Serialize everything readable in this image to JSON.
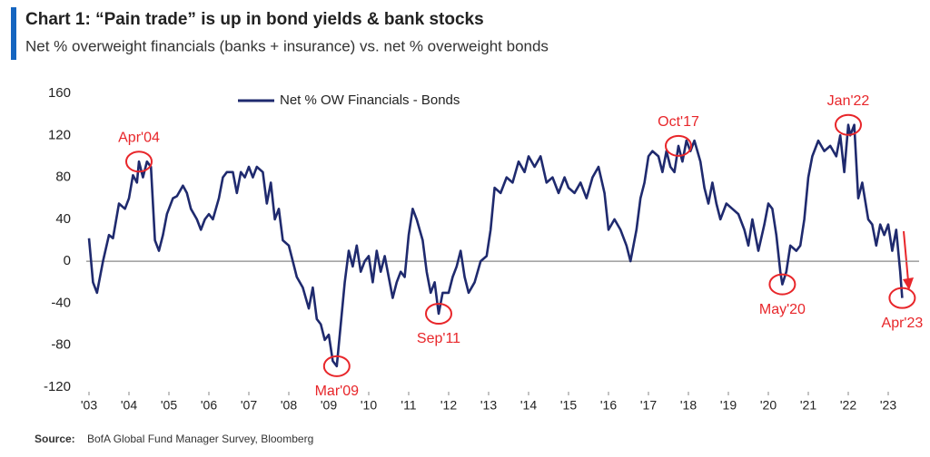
{
  "chart_data": {
    "type": "line",
    "title": "Chart 1: “Pain trade” is up in bond yields & bank stocks",
    "subtitle": "Net % overweight financials (banks + insurance) vs. net % overweight bonds",
    "source_label": "Source:",
    "source": "BofA Global Fund Manager Survey, Bloomberg",
    "xlim": [
      2003,
      2023.8
    ],
    "ylim": [
      -120,
      160
    ],
    "xticks": [
      {
        "value": 2003,
        "label": "'03"
      },
      {
        "value": 2004,
        "label": "'04"
      },
      {
        "value": 2005,
        "label": "'05"
      },
      {
        "value": 2006,
        "label": "'06"
      },
      {
        "value": 2007,
        "label": "'07"
      },
      {
        "value": 2008,
        "label": "'08"
      },
      {
        "value": 2009,
        "label": "'09"
      },
      {
        "value": 2010,
        "label": "'10"
      },
      {
        "value": 2011,
        "label": "'11"
      },
      {
        "value": 2012,
        "label": "'12"
      },
      {
        "value": 2013,
        "label": "'13"
      },
      {
        "value": 2014,
        "label": "'14"
      },
      {
        "value": 2015,
        "label": "'15"
      },
      {
        "value": 2016,
        "label": "'16"
      },
      {
        "value": 2017,
        "label": "'17"
      },
      {
        "value": 2018,
        "label": "'18"
      },
      {
        "value": 2019,
        "label": "'19"
      },
      {
        "value": 2020,
        "label": "'20"
      },
      {
        "value": 2021,
        "label": "'21"
      },
      {
        "value": 2022,
        "label": "'22"
      },
      {
        "value": 2023,
        "label": "'23"
      }
    ],
    "yticks": [
      -120,
      -80,
      -40,
      0,
      40,
      80,
      120,
      160
    ],
    "grid": false,
    "legend": "top",
    "x": [
      2003.0,
      2003.1,
      2003.2,
      2003.35,
      2003.5,
      2003.6,
      2003.75,
      2003.9,
      2004.0,
      2004.1,
      2004.2,
      2004.25,
      2004.35,
      2004.45,
      2004.55,
      2004.65,
      2004.75,
      2004.85,
      2004.95,
      2005.1,
      2005.2,
      2005.35,
      2005.45,
      2005.55,
      2005.7,
      2005.8,
      2005.9,
      2006.0,
      2006.1,
      2006.25,
      2006.35,
      2006.45,
      2006.6,
      2006.7,
      2006.8,
      2006.9,
      2007.0,
      2007.1,
      2007.2,
      2007.35,
      2007.45,
      2007.55,
      2007.65,
      2007.75,
      2007.85,
      2008.0,
      2008.1,
      2008.2,
      2008.35,
      2008.5,
      2008.6,
      2008.7,
      2008.8,
      2008.9,
      2009.0,
      2009.1,
      2009.2,
      2009.3,
      2009.4,
      2009.5,
      2009.6,
      2009.7,
      2009.8,
      2009.9,
      2010.0,
      2010.1,
      2010.2,
      2010.3,
      2010.4,
      2010.5,
      2010.6,
      2010.7,
      2010.8,
      2010.9,
      2011.0,
      2011.1,
      2011.2,
      2011.35,
      2011.45,
      2011.55,
      2011.65,
      2011.75,
      2011.85,
      2012.0,
      2012.1,
      2012.2,
      2012.3,
      2012.4,
      2012.5,
      2012.65,
      2012.8,
      2012.95,
      2013.05,
      2013.15,
      2013.3,
      2013.45,
      2013.6,
      2013.75,
      2013.9,
      2014.0,
      2014.15,
      2014.3,
      2014.45,
      2014.6,
      2014.75,
      2014.9,
      2015.0,
      2015.15,
      2015.3,
      2015.45,
      2015.6,
      2015.75,
      2015.9,
      2016.0,
      2016.15,
      2016.3,
      2016.45,
      2016.55,
      2016.7,
      2016.8,
      2016.9,
      2017.0,
      2017.1,
      2017.25,
      2017.35,
      2017.45,
      2017.55,
      2017.65,
      2017.75,
      2017.85,
      2017.95,
      2018.05,
      2018.15,
      2018.3,
      2018.4,
      2018.5,
      2018.6,
      2018.7,
      2018.8,
      2018.95,
      2019.1,
      2019.25,
      2019.4,
      2019.5,
      2019.6,
      2019.75,
      2019.9,
      2020.0,
      2020.1,
      2020.2,
      2020.3,
      2020.35,
      2020.45,
      2020.55,
      2020.7,
      2020.8,
      2020.9,
      2021.0,
      2021.1,
      2021.25,
      2021.4,
      2021.55,
      2021.7,
      2021.8,
      2021.9,
      2022.0,
      2022.05,
      2022.15,
      2022.25,
      2022.35,
      2022.5,
      2022.6,
      2022.7,
      2022.8,
      2022.9,
      2023.0,
      2023.1,
      2023.2,
      2023.3,
      2023.35
    ],
    "series": [
      {
        "name": "Net % OW Financials - Bonds",
        "color": "#1f2a6e",
        "values": [
          22,
          -20,
          -30,
          0,
          25,
          22,
          55,
          50,
          60,
          82,
          75,
          95,
          80,
          95,
          90,
          20,
          10,
          25,
          45,
          60,
          62,
          72,
          65,
          50,
          40,
          30,
          40,
          45,
          40,
          60,
          80,
          85,
          85,
          65,
          85,
          80,
          90,
          80,
          90,
          85,
          55,
          75,
          40,
          50,
          20,
          15,
          0,
          -15,
          -25,
          -45,
          -25,
          -55,
          -60,
          -75,
          -70,
          -95,
          -100,
          -60,
          -20,
          10,
          -5,
          15,
          -10,
          0,
          5,
          -20,
          10,
          -10,
          5,
          -15,
          -35,
          -20,
          -10,
          -15,
          25,
          50,
          40,
          20,
          -10,
          -30,
          -20,
          -50,
          -30,
          -30,
          -15,
          -5,
          10,
          -15,
          -30,
          -20,
          0,
          5,
          30,
          70,
          65,
          80,
          75,
          95,
          85,
          100,
          90,
          100,
          75,
          80,
          65,
          80,
          70,
          65,
          75,
          60,
          80,
          90,
          65,
          30,
          40,
          30,
          15,
          0,
          30,
          60,
          75,
          100,
          105,
          100,
          85,
          105,
          90,
          85,
          110,
          95,
          115,
          105,
          115,
          95,
          70,
          55,
          75,
          55,
          40,
          55,
          50,
          45,
          30,
          15,
          40,
          10,
          35,
          55,
          50,
          25,
          -10,
          -22,
          -10,
          15,
          10,
          15,
          40,
          80,
          100,
          115,
          105,
          110,
          100,
          120,
          85,
          130,
          120,
          130,
          60,
          75,
          40,
          35,
          15,
          35,
          25,
          35,
          10,
          30,
          -10,
          -35
        ]
      }
    ],
    "annotations": [
      {
        "text": "Apr'04",
        "x": 2004.25,
        "y": 95
      },
      {
        "text": "Mar'09",
        "x": 2009.2,
        "y": -100
      },
      {
        "text": "Sep'11",
        "x": 2011.75,
        "y": -50
      },
      {
        "text": "Oct'17",
        "x": 2017.75,
        "y": 110
      },
      {
        "text": "May'20",
        "x": 2020.35,
        "y": -22
      },
      {
        "text": "Jan'22",
        "x": 2022.0,
        "y": 130
      },
      {
        "text": "Apr'23",
        "x": 2023.35,
        "y": -35
      }
    ]
  }
}
